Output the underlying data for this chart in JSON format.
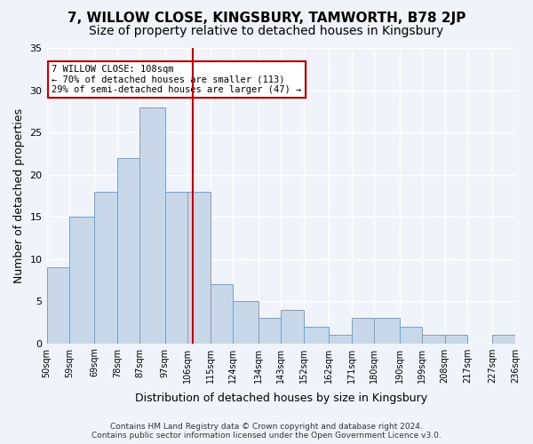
{
  "title": "7, WILLOW CLOSE, KINGSBURY, TAMWORTH, B78 2JP",
  "subtitle": "Size of property relative to detached houses in Kingsbury",
  "xlabel": "Distribution of detached houses by size in Kingsbury",
  "ylabel": "Number of detached properties",
  "bar_color": "#c8d8e8",
  "bar_edge_color": "#7aa0c0",
  "background_color": "#f0f4fa",
  "grid_color": "#ffffff",
  "vline_x": 108,
  "vline_color": "#cc0000",
  "annotation_text": "7 WILLOW CLOSE: 108sqm\n← 70% of detached houses are smaller (113)\n29% of semi-detached houses are larger (47) →",
  "annotation_box_color": "#cc0000",
  "bin_edges": [
    50,
    59,
    69,
    78,
    87,
    97,
    106,
    115,
    124,
    134,
    143,
    152,
    162,
    171,
    180,
    190,
    199,
    208,
    217,
    227,
    236
  ],
  "bin_labels": [
    "50sqm",
    "59sqm",
    "69sqm",
    "78sqm",
    "87sqm",
    "97sqm",
    "106sqm",
    "115sqm",
    "124sqm",
    "134sqm",
    "143sqm",
    "152sqm",
    "162sqm",
    "171sqm",
    "180sqm",
    "190sqm",
    "199sqm",
    "208sqm",
    "217sqm",
    "227sqm",
    "236sqm"
  ],
  "counts": [
    9,
    15,
    18,
    22,
    28,
    18,
    18,
    7,
    5,
    3,
    4,
    2,
    1,
    3,
    3,
    2,
    1,
    1,
    0,
    1
  ],
  "ylim": [
    0,
    35
  ],
  "yticks": [
    0,
    5,
    10,
    15,
    20,
    25,
    30,
    35
  ],
  "footer": "Contains HM Land Registry data © Crown copyright and database right 2024.\nContains public sector information licensed under the Open Government Licence v3.0.",
  "title_fontsize": 11,
  "subtitle_fontsize": 10,
  "ylabel_fontsize": 9,
  "xlabel_fontsize": 9
}
